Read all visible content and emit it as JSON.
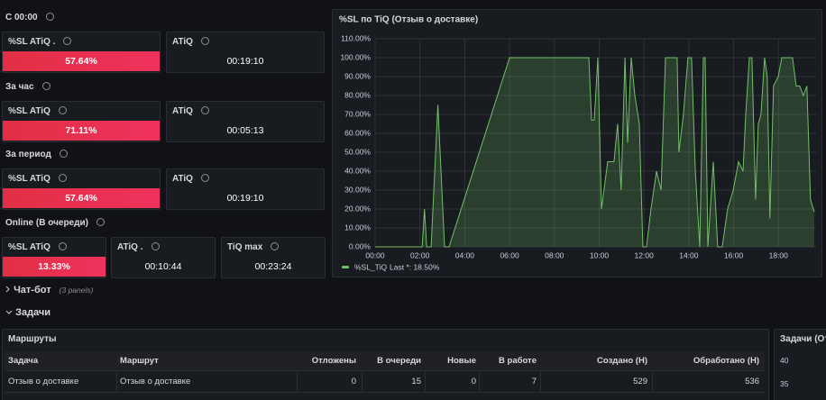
{
  "stat_groups": [
    {
      "title": "С 00:00",
      "panels": [
        {
          "title": "%SL ATiQ .",
          "value": "57.64%"
        },
        {
          "title": "ATiQ",
          "value": "00:19:10"
        }
      ]
    },
    {
      "title": "За час",
      "panels": [
        {
          "title": "%SL ATiQ",
          "value": "71.11%"
        },
        {
          "title": "ATiQ",
          "value": "00:05:13"
        }
      ]
    },
    {
      "title": "За период",
      "panels": [
        {
          "title": "%SL ATiQ",
          "value": "57.64%"
        },
        {
          "title": "ATiQ",
          "value": "00:19:10"
        }
      ]
    },
    {
      "title": "Online (В очереди)",
      "panels": [
        {
          "title": "%SL ATiQ",
          "value": "13.33%"
        },
        {
          "title": "ATiQ .",
          "value": "00:10:44"
        },
        {
          "title": "TiQ max",
          "value": "00:23:24"
        }
      ]
    }
  ],
  "chart_data": {
    "type": "line",
    "title": "%SL по TiQ (Отзыв о доставке)",
    "x": [
      0,
      2.1,
      2.2,
      2.3,
      2.5,
      2.8,
      3.1,
      3.3,
      6.0,
      9.54,
      9.66,
      9.78,
      9.94,
      10.1,
      10.38,
      10.66,
      10.82,
      10.98,
      11.15,
      11.27,
      11.43,
      11.59,
      11.79,
      11.95,
      12.11,
      12.31,
      12.56,
      12.76,
      12.96,
      13.48,
      13.56,
      13.76,
      13.96,
      14.12,
      14.29,
      14.49,
      14.65,
      14.73,
      14.85,
      15.09,
      15.29,
      15.49,
      15.73,
      15.98,
      16.22,
      16.42,
      16.54,
      16.7,
      16.82,
      16.98,
      17.1,
      17.22,
      17.38,
      17.5,
      17.62,
      17.78,
      17.99,
      18.15,
      18.63,
      18.79,
      18.95,
      19.11,
      19.27,
      19.43,
      19.6
    ],
    "series": [
      {
        "name": "%SL_TiQ",
        "color": "#73bf69",
        "values": [
          0,
          0,
          20,
          0,
          0,
          75,
          0,
          0,
          100,
          100,
          67,
          67,
          100,
          20,
          45,
          45,
          65,
          30,
          100,
          55,
          100,
          80,
          65,
          0,
          0,
          20,
          40,
          30,
          100,
          100,
          50,
          70,
          100,
          100,
          40,
          0,
          100,
          100,
          0,
          45,
          0,
          0,
          20,
          30,
          45,
          40,
          70,
          100,
          100,
          25,
          65,
          70,
          100,
          90,
          15,
          85,
          90,
          100,
          100,
          85,
          85,
          80,
          85,
          25,
          18.5
        ]
      }
    ],
    "legend_last": "Last *: 18.50%",
    "xlim": [
      0,
      19.72
    ],
    "xticks": [
      {
        "value": 0,
        "label": "00:00"
      },
      {
        "value": 2,
        "label": "02:00"
      },
      {
        "value": 4,
        "label": "04:00"
      },
      {
        "value": 6,
        "label": "06:00"
      },
      {
        "value": 8,
        "label": "08:00"
      },
      {
        "value": 10,
        "label": "10:00"
      },
      {
        "value": 12,
        "label": "12:00"
      },
      {
        "value": 14,
        "label": "14:00"
      },
      {
        "value": 16,
        "label": "16:00"
      },
      {
        "value": 18,
        "label": "18:00"
      }
    ],
    "ylim": [
      0,
      110
    ],
    "yticks": [
      {
        "value": 0,
        "label": "0.00%"
      },
      {
        "value": 10,
        "label": "10.00%"
      },
      {
        "value": 20,
        "label": "20.00%"
      },
      {
        "value": 30,
        "label": "30.00%"
      },
      {
        "value": 40,
        "label": "40.00%"
      },
      {
        "value": 50,
        "label": "50.00%"
      },
      {
        "value": 60,
        "label": "60.00%"
      },
      {
        "value": 70,
        "label": "70.00%"
      },
      {
        "value": 80,
        "label": "80.00%"
      },
      {
        "value": 90,
        "label": "90.00%"
      },
      {
        "value": 100,
        "label": "100.00%"
      },
      {
        "value": 110,
        "label": "110.00%"
      }
    ],
    "grid": true
  },
  "collapsed_row": {
    "title": "Чат-бот",
    "note": "(3 panels)"
  },
  "expanded_row": {
    "title": "Задачи"
  },
  "table": {
    "title": "Маршруты",
    "columns": [
      "Задача",
      "Маршрут",
      "Отложены",
      "В очереди",
      "Новые",
      "В работе",
      "Создано (Н)",
      "Обработано (Н)"
    ],
    "rows": [
      [
        "Отзыв о доставке",
        "Отзыв о доставке",
        "0",
        "15",
        "0",
        "7",
        "529",
        "536"
      ]
    ]
  },
  "side_panel": {
    "title": "Задачи (От",
    "yticks": [
      40,
      35
    ]
  }
}
